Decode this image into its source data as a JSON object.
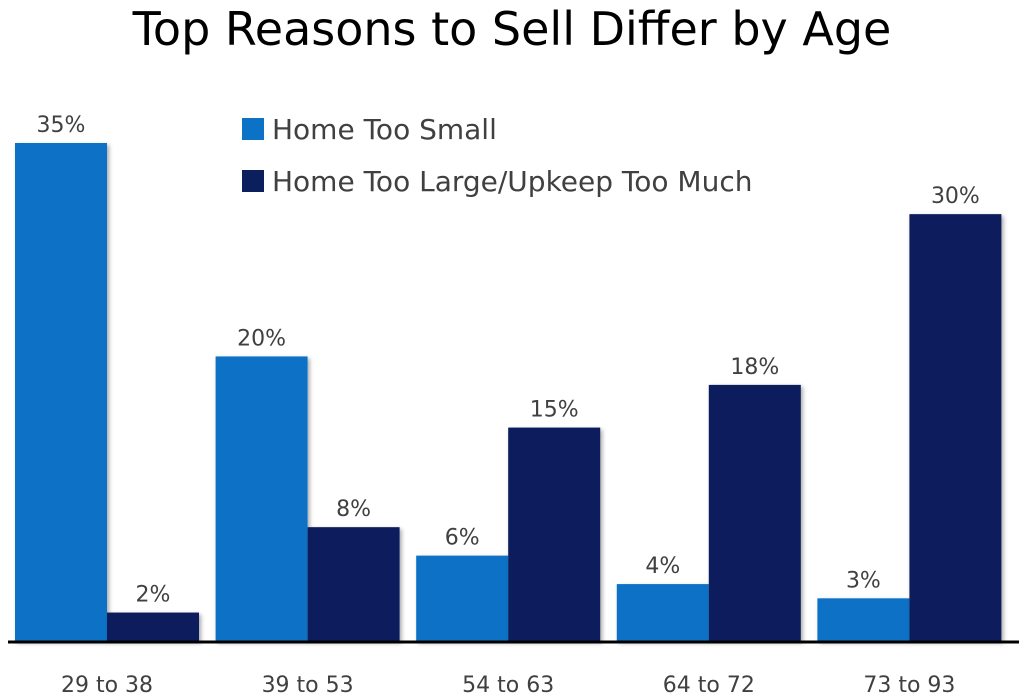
{
  "chart_data": {
    "type": "bar",
    "title": "Top Reasons to Sell Differ by Age",
    "xlabel": "",
    "ylabel": "",
    "categories": [
      "29 to 38",
      "39 to 53",
      "54 to 63",
      "64 to 72",
      "73 to 93"
    ],
    "series": [
      {
        "name": "Home Too Small",
        "values": [
          35,
          20,
          6,
          4,
          3
        ],
        "color": "#0B72C6",
        "labels": [
          "35%",
          "20%",
          "6%",
          "4%",
          "3%"
        ]
      },
      {
        "name": "Home Too Large/Upkeep Too Much",
        "values": [
          2,
          8,
          15,
          18,
          30
        ],
        "color": "#0A1F5C",
        "labels": [
          "2%",
          "8%",
          "15%",
          "18%",
          "30%"
        ]
      }
    ],
    "ylim": [
      0,
      35
    ],
    "grid": false,
    "legend_position": "top-center"
  }
}
